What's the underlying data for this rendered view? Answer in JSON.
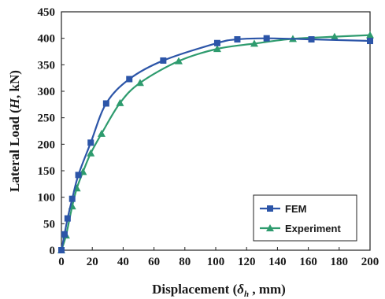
{
  "chart_data": {
    "type": "line",
    "title": "",
    "xlabel_parts": [
      "Displacement (",
      "δ",
      "h",
      " , mm)"
    ],
    "ylabel_parts": [
      "Lateral Load (",
      "H",
      ", kN)"
    ],
    "xlim": [
      0,
      200
    ],
    "ylim": [
      0,
      450
    ],
    "xticks": [
      0,
      20,
      40,
      60,
      80,
      100,
      120,
      140,
      160,
      180,
      200
    ],
    "yticks": [
      0,
      50,
      100,
      150,
      200,
      250,
      300,
      350,
      400,
      450
    ],
    "grid": false,
    "legend_position": "bottom-right",
    "series": [
      {
        "name": "FEM",
        "color": "#2c55a8",
        "marker": "square",
        "x": [
          0,
          2,
          4,
          7,
          11,
          19,
          29,
          44,
          66,
          101,
          114,
          133,
          162,
          200
        ],
        "y": [
          0,
          30,
          60,
          97,
          142,
          203,
          277,
          323,
          358,
          391,
          398,
          400,
          398,
          395
        ]
      },
      {
        "name": "Experiment",
        "color": "#2e9b6e",
        "marker": "triangle",
        "x": [
          0,
          3,
          7,
          10,
          14,
          19,
          26,
          38,
          51,
          76,
          101,
          125,
          150,
          177,
          200
        ],
        "y": [
          0,
          28,
          83,
          117,
          148,
          183,
          220,
          278,
          316,
          357,
          380,
          390,
          399,
          403,
          406
        ]
      }
    ]
  }
}
